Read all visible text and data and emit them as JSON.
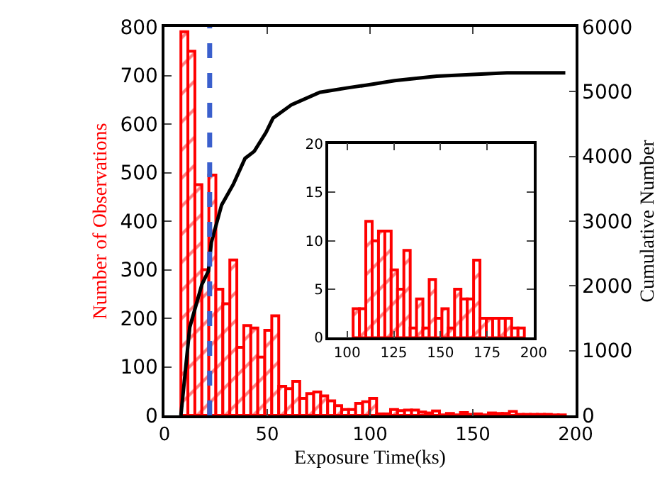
{
  "chart_data": [
    {
      "type": "histogram",
      "xlabel": "Exposure Time(ks)",
      "ylabel": "Number of Observations",
      "y2label": "Cumulative Number",
      "bins": [
        8,
        11.4,
        14.8,
        18.2,
        21.6,
        25,
        28.4,
        31.8,
        35.2,
        38.6,
        42,
        45.4,
        48.8,
        52.2,
        55.6,
        59,
        62.4,
        65.8,
        69.2,
        72.6,
        76,
        79.4,
        82.8,
        86.2,
        89.6,
        93,
        96.4,
        99.8,
        103.2,
        106.6,
        110,
        113.4,
        116.8,
        120.2,
        123.6,
        127,
        130.4,
        133.8,
        137.2,
        140.6,
        144,
        147.4,
        150.8,
        154.2,
        157.6,
        161,
        164.4,
        167.8,
        171.2,
        174.6,
        178,
        181.4,
        184.8,
        188.2,
        191.6,
        195
      ],
      "series": [
        {
          "type": "histogram",
          "color": "#ff0000",
          "values": [
            790,
            750,
            475,
            300,
            495,
            260,
            230,
            320,
            140,
            185,
            180,
            120,
            175,
            205,
            60,
            55,
            70,
            35,
            45,
            48,
            40,
            30,
            20,
            12,
            12,
            25,
            28,
            35,
            3,
            3,
            12,
            10,
            11,
            11,
            7,
            5,
            9,
            1,
            4,
            1,
            6,
            2,
            3,
            1,
            5,
            4,
            4,
            8,
            2,
            2,
            2,
            2,
            2,
            1,
            1
          ]
        },
        {
          "type": "line",
          "axis": "y2",
          "color": "#000000",
          "x": [
            8,
            12.3,
            18.2,
            21.4,
            22.8,
            27.8,
            33.5,
            39.2,
            43.7,
            49.4,
            52.8,
            61.9,
            75.6,
            89.2,
            98,
            112,
            132.4,
            166.6,
            195
          ],
          "values": [
            0,
            1360,
            2020,
            2230,
            2670,
            3250,
            3570,
            3970,
            4080,
            4370,
            4590,
            4800,
            4990,
            5060,
            5100,
            5170,
            5240,
            5290,
            5290
          ]
        }
      ],
      "xlim": [
        0,
        200
      ],
      "xticks": [
        0,
        50,
        100,
        150,
        200
      ],
      "ylim": [
        0,
        800
      ],
      "yticks": [
        0,
        100,
        200,
        300,
        400,
        500,
        600,
        700,
        800
      ],
      "y2lim": [
        0,
        6000
      ],
      "y2ticks": [
        0,
        1000,
        2000,
        3000,
        4000,
        5000,
        6000
      ],
      "ref_lines": [
        {
          "axis": "x",
          "value": 22,
          "color": "#3a5fcd",
          "line_style": "dashed"
        }
      ]
    },
    {
      "type": "histogram",
      "color": "#ff0000",
      "bins": [
        103.2,
        106.6,
        110,
        113.4,
        116.8,
        120.2,
        123.6,
        127,
        130.4,
        133.8,
        137.2,
        140.6,
        144,
        147.4,
        150.8,
        154.2,
        157.6,
        161,
        164.4,
        167.8,
        171.2,
        174.6,
        178,
        181.4,
        184.8,
        188.2,
        191.6,
        195
      ],
      "values": [
        3,
        3,
        12,
        10,
        11,
        11,
        7,
        5,
        9,
        1,
        4,
        1,
        6,
        2,
        3,
        1,
        5,
        4,
        4,
        8,
        2,
        2,
        2,
        2,
        2,
        1,
        1
      ],
      "xlim": [
        90,
        200
      ],
      "xticks": [
        100,
        125,
        150,
        175,
        200
      ],
      "ylim": [
        0,
        20
      ],
      "yticks": [
        0,
        5,
        10,
        15,
        20
      ]
    }
  ]
}
